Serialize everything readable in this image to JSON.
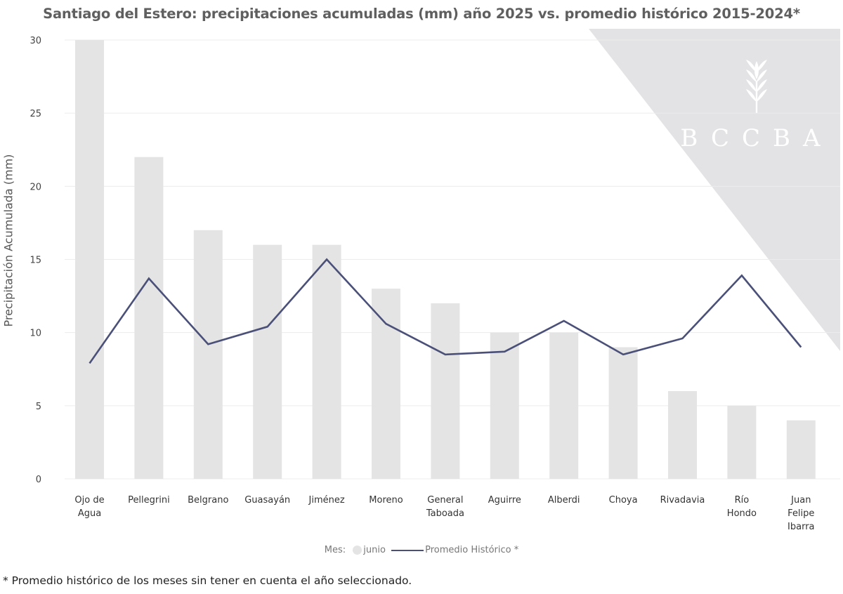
{
  "title": "Santiago del Estero: precipitaciones acumuladas (mm) año 2025 vs. promedio histórico 2015-2024*",
  "watermark": {
    "text": "BCCBA",
    "icon": "wheat-icon",
    "color": "#e3e3e5"
  },
  "legend": {
    "prefix": "Mes:",
    "bar_label": "junio",
    "line_label": "Promedio Histórico *"
  },
  "footnote": "* Promedio histórico de los meses sin tener en cuenta el año seleccionado.",
  "colors": {
    "bar": "#e4e4e4",
    "line": "#4a5078",
    "grid": "#ececec",
    "watermark": "#e3e3e5"
  },
  "chart_data": {
    "type": "bar",
    "title": "Santiago del Estero: precipitaciones acumuladas (mm) año 2025 vs. promedio histórico 2015-2024*",
    "xlabel": "",
    "ylabel": "Precipitación Acumulada (mm)",
    "ylim": [
      0,
      30
    ],
    "yticks": [
      0,
      5,
      10,
      15,
      20,
      25,
      30
    ],
    "grid": true,
    "legend_position": "bottom",
    "categories": [
      "Ojo de Agua",
      "Pellegrini",
      "Belgrano",
      "Guasayán",
      "Jiménez",
      "Moreno",
      "General Taboada",
      "Aguirre",
      "Alberdi",
      "Choya",
      "Rivadavia",
      "Río Hondo",
      "Juan Felipe Ibarra"
    ],
    "category_lines": [
      [
        "Ojo de",
        "Agua"
      ],
      [
        "Pellegrini"
      ],
      [
        "Belgrano"
      ],
      [
        "Guasayán"
      ],
      [
        "Jiménez"
      ],
      [
        "Moreno"
      ],
      [
        "General",
        "Taboada"
      ],
      [
        "Aguirre"
      ],
      [
        "Alberdi"
      ],
      [
        "Choya"
      ],
      [
        "Rivadavia"
      ],
      [
        "Río",
        "Hondo"
      ],
      [
        "Juan",
        "Felipe",
        "Ibarra"
      ]
    ],
    "series": [
      {
        "name": "junio",
        "type": "bar",
        "values": [
          30,
          22,
          17,
          16,
          16,
          13,
          12,
          10,
          10,
          9,
          6,
          5,
          4
        ]
      },
      {
        "name": "Promedio Histórico *",
        "type": "line",
        "values": [
          7.9,
          13.7,
          9.2,
          10.4,
          15.0,
          10.6,
          8.5,
          8.7,
          10.8,
          8.5,
          9.6,
          13.9,
          9.0
        ]
      }
    ]
  }
}
